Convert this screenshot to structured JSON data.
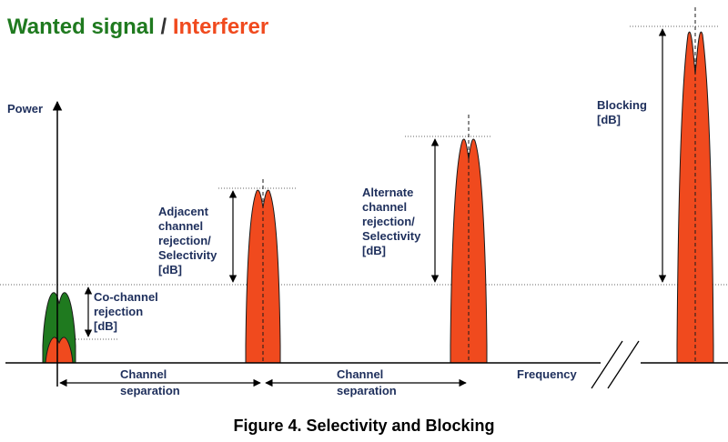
{
  "legend": {
    "wanted": "Wanted signal",
    "separator": "/",
    "interferer": "Interferer"
  },
  "axes": {
    "y_label": "Power",
    "x_label": "Frequency"
  },
  "labels": {
    "co_channel": [
      "Co-channel",
      "rejection",
      "[dB]"
    ],
    "adjacent": [
      "Adjacent",
      "channel",
      "rejection/",
      "Selectivity",
      "[dB]"
    ],
    "alternate": [
      "Alternate",
      "channel",
      "rejection/",
      "Selectivity",
      "[dB]"
    ],
    "blocking": [
      "Blocking",
      "[dB]"
    ],
    "separation1": [
      "Channel",
      "separation"
    ],
    "separation2": [
      "Channel",
      "separation"
    ]
  },
  "caption": "Figure 4. Selectivity and Blocking",
  "colors": {
    "wanted": "#1f7a1f",
    "interferer": "#f04a1e",
    "label": "#1e2f5c"
  }
}
